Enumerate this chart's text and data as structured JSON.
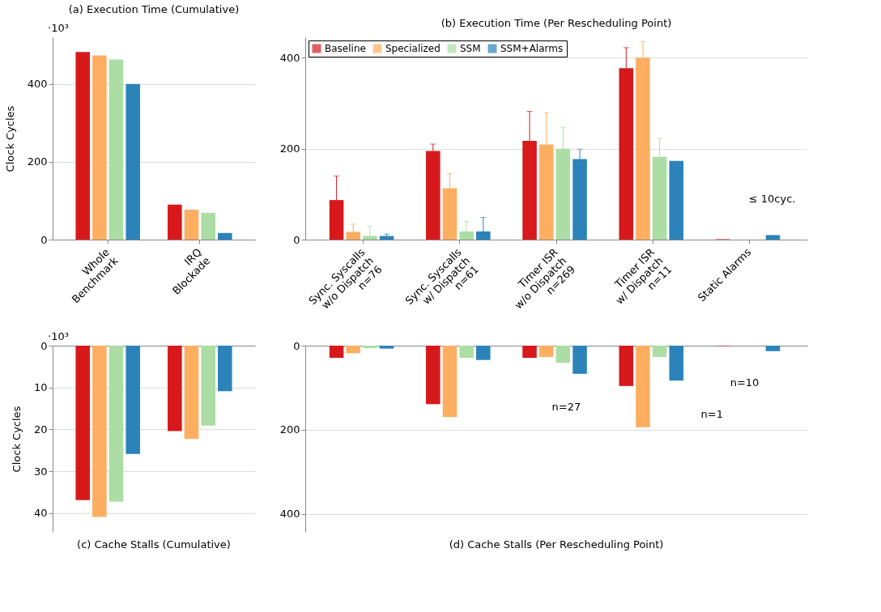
{
  "chart_data": [
    {
      "type": "bar",
      "title": "(a) Execution Time (Cumulative)",
      "ylabel": "Clock Cycles",
      "annotations": [
        "·10³"
      ],
      "categories": [
        "Whole\nBenchmark",
        "IRQ\nBlockade"
      ],
      "ylim": [
        0,
        520
      ],
      "yticks": [
        0,
        200,
        400
      ],
      "grid": "y",
      "series": [
        {
          "color": "#d7191c",
          "values": [
            482,
            90
          ]
        },
        {
          "color": "#fdae61",
          "values": [
            473,
            77
          ]
        },
        {
          "color": "#abdda4",
          "values": [
            463,
            69
          ]
        },
        {
          "color": "#2b83ba",
          "values": [
            400,
            17
          ]
        }
      ]
    },
    {
      "type": "bar",
      "title": "(b) Execution Time (Per Rescheduling Point)",
      "categories": [
        "Sync. Syscalls\nw/o Dispatch\nn=76",
        "Sync. Syscalls\nw/ Dispatch\nn=61",
        "Timer ISR\nw/o Dispatch\nn=269",
        "Timer ISR\nw/ Dispatch\nn=11",
        "Static Alarms"
      ],
      "ylim": [
        0,
        445
      ],
      "yticks": [
        0,
        200,
        400
      ],
      "grid": "y",
      "legend": "top left",
      "annotations": [
        "≤ 10cyc."
      ],
      "series": [
        {
          "name": "Baseline",
          "color": "#d7191c",
          "values": [
            87,
            195,
            217,
            377,
            1
          ],
          "errors": [
            [
              87,
              140
            ],
            [
              195,
              210
            ],
            [
              217,
              282
            ],
            [
              377,
              422
            ],
            null
          ]
        },
        {
          "name": "Specialized",
          "color": "#fdae61",
          "values": [
            17,
            113,
            209,
            400,
            0
          ],
          "errors": [
            [
              17,
              34
            ],
            [
              113,
              145
            ],
            [
              209,
              279
            ],
            [
              400,
              435
            ],
            null
          ]
        },
        {
          "name": "SSM",
          "color": "#abdda4",
          "values": [
            8,
            18,
            200,
            182,
            0
          ],
          "errors": [
            [
              8,
              29
            ],
            [
              18,
              40
            ],
            [
              200,
              247
            ],
            [
              182,
              223
            ],
            null
          ]
        },
        {
          "name": "SSM+Alarms",
          "color": "#2b83ba",
          "values": [
            8,
            18,
            177,
            173,
            10
          ],
          "errors": [
            [
              8,
              12
            ],
            [
              18,
              49
            ],
            [
              177,
              199
            ],
            null,
            null
          ]
        }
      ]
    },
    {
      "type": "bar",
      "title": "(c) Cache Stalls (Cumulative)",
      "ylabel": "Clock Cycles",
      "annotations": [
        "·10³"
      ],
      "categories": [
        null,
        null
      ],
      "tick_labels": "y",
      "ylim": [
        44.5,
        0
      ],
      "yticks": [
        0,
        10,
        20,
        30,
        40
      ],
      "grid": "y",
      "series": [
        {
          "color": "#d7191c",
          "values": [
            36.9,
            20.4
          ]
        },
        {
          "color": "#fdae61",
          "values": [
            40.9,
            22.3
          ]
        },
        {
          "color": "#abdda4",
          "values": [
            37.3,
            19.1
          ]
        },
        {
          "color": "#2b83ba",
          "values": [
            25.9,
            10.9
          ]
        }
      ]
    },
    {
      "type": "bar",
      "title": "(d) Cache Stalls (Per Rescheduling Point)",
      "categories": [
        null,
        null,
        null,
        null,
        null
      ],
      "tick_labels": "y",
      "ylim": [
        443,
        0
      ],
      "yticks": [
        0,
        200,
        400
      ],
      "grid": "y",
      "annotations": [
        "n=27",
        "n=1",
        "n=10"
      ],
      "series": [
        {
          "color": "#d7191c",
          "values": [
            29,
            139,
            29,
            96,
            1
          ]
        },
        {
          "color": "#fdae61",
          "values": [
            18,
            170,
            27,
            194,
            0
          ]
        },
        {
          "color": "#abdda4",
          "values": [
            6,
            29,
            41,
            27,
            0
          ]
        },
        {
          "color": "#2b83ba",
          "values": [
            7,
            34,
            67,
            83,
            13
          ]
        }
      ]
    }
  ]
}
